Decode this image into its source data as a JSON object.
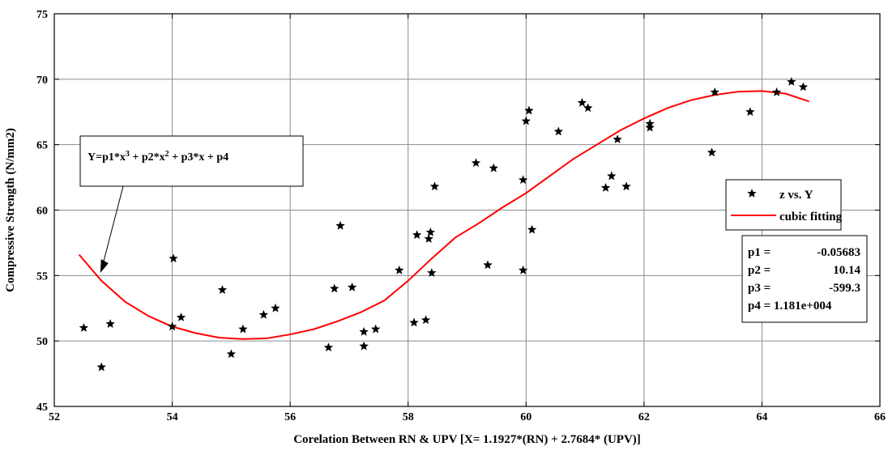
{
  "chart_data": {
    "type": "scatter",
    "title": "",
    "xlabel": "Corelation Between RN & UPV [X= 1.1927*(RN) + 2.7684* (UPV)]",
    "ylabel": "Compressive Strength  (N/mm2)",
    "xlim": [
      52,
      66
    ],
    "ylim": [
      45,
      75
    ],
    "xticks": [
      "52",
      "54",
      "56",
      "58",
      "60",
      "62",
      "64",
      "66"
    ],
    "yticks": [
      "45",
      "50",
      "55",
      "60",
      "65",
      "70",
      "75"
    ],
    "grid": true,
    "legend_position": "right",
    "series": [
      {
        "name": "z vs. Y",
        "type": "scatter",
        "marker": "star",
        "color": "#000000",
        "points": [
          [
            52.5,
            51.0
          ],
          [
            52.8,
            48.0
          ],
          [
            52.95,
            51.3
          ],
          [
            54.0,
            51.1
          ],
          [
            54.02,
            56.3
          ],
          [
            54.15,
            51.8
          ],
          [
            54.85,
            53.9
          ],
          [
            55.0,
            49.0
          ],
          [
            55.2,
            50.9
          ],
          [
            55.55,
            52.0
          ],
          [
            55.75,
            52.5
          ],
          [
            56.65,
            49.5
          ],
          [
            56.75,
            54.0
          ],
          [
            56.85,
            58.8
          ],
          [
            57.05,
            54.1
          ],
          [
            57.25,
            49.6
          ],
          [
            57.25,
            50.7
          ],
          [
            57.45,
            50.9
          ],
          [
            57.85,
            55.4
          ],
          [
            58.1,
            51.4
          ],
          [
            58.15,
            58.1
          ],
          [
            58.3,
            51.6
          ],
          [
            58.35,
            57.8
          ],
          [
            58.38,
            58.3
          ],
          [
            58.4,
            55.2
          ],
          [
            58.45,
            61.8
          ],
          [
            59.15,
            63.6
          ],
          [
            59.35,
            55.8
          ],
          [
            59.45,
            63.2
          ],
          [
            59.95,
            62.3
          ],
          [
            59.95,
            55.4
          ],
          [
            60.0,
            66.8
          ],
          [
            60.05,
            67.6
          ],
          [
            60.1,
            58.5
          ],
          [
            60.55,
            66.0
          ],
          [
            60.95,
            68.2
          ],
          [
            61.05,
            67.8
          ],
          [
            61.35,
            61.7
          ],
          [
            61.45,
            62.6
          ],
          [
            61.55,
            65.4
          ],
          [
            61.7,
            61.8
          ],
          [
            62.1,
            66.3
          ],
          [
            62.1,
            66.6
          ],
          [
            63.15,
            64.4
          ],
          [
            63.2,
            69.0
          ],
          [
            63.8,
            67.5
          ],
          [
            64.25,
            69.0
          ],
          [
            64.5,
            69.8
          ],
          [
            64.7,
            69.4
          ]
        ]
      },
      {
        "name": "cubic fitting",
        "type": "line",
        "color": "#ff0000",
        "coefficients": [
          -0.05683,
          10.14,
          -599.3,
          11810
        ],
        "x_range": [
          52.42,
          64.8
        ],
        "points": [
          [
            52.42,
            56.6
          ],
          [
            52.8,
            54.6
          ],
          [
            53.2,
            53.0
          ],
          [
            53.6,
            51.9
          ],
          [
            54.0,
            51.1
          ],
          [
            54.4,
            50.6
          ],
          [
            54.8,
            50.25
          ],
          [
            55.2,
            50.15
          ],
          [
            55.6,
            50.2
          ],
          [
            56.0,
            50.5
          ],
          [
            56.4,
            50.9
          ],
          [
            56.8,
            51.5
          ],
          [
            57.2,
            52.2
          ],
          [
            57.6,
            53.1
          ],
          [
            58.0,
            54.6
          ],
          [
            58.4,
            56.3
          ],
          [
            58.8,
            57.9
          ],
          [
            59.2,
            59.0
          ],
          [
            59.6,
            60.2
          ],
          [
            60.0,
            61.3
          ],
          [
            60.4,
            62.6
          ],
          [
            60.8,
            63.9
          ],
          [
            61.2,
            65.0
          ],
          [
            61.6,
            66.1
          ],
          [
            62.0,
            67.0
          ],
          [
            62.4,
            67.8
          ],
          [
            62.8,
            68.4
          ],
          [
            63.2,
            68.8
          ],
          [
            63.6,
            69.05
          ],
          [
            64.0,
            69.1
          ],
          [
            64.4,
            68.9
          ],
          [
            64.8,
            68.3
          ]
        ]
      }
    ],
    "annotation": {
      "equation_html_parts": [
        "Y=p1*x",
        "3",
        " + p2*x",
        "2",
        " + p3*x + p4"
      ],
      "arrow_target": [
        52.78,
        55.2
      ]
    },
    "coefficients_box": {
      "rows": [
        [
          "p1 =",
          "-0.05683"
        ],
        [
          "p2 =",
          "10.14"
        ],
        [
          "p3 =",
          "-599.3"
        ],
        [
          "p4 = 1.181e+004",
          ""
        ]
      ]
    }
  }
}
